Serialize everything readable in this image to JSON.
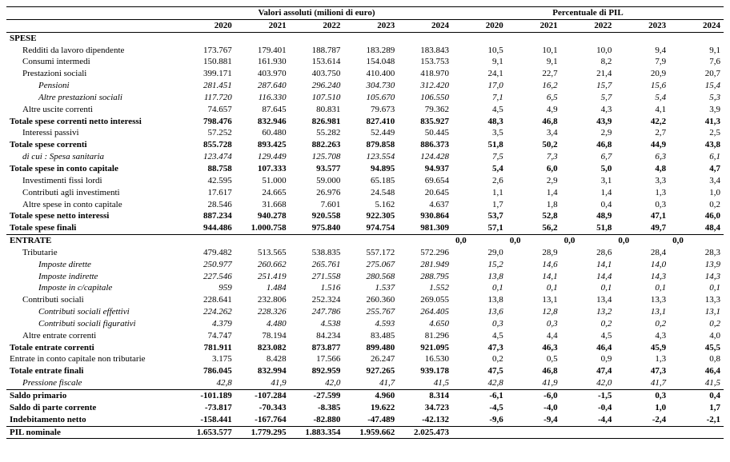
{
  "header": {
    "group_abs": "Valori assoluti (milioni di euro)",
    "group_pct": "Percentuale di PIL",
    "years": [
      "2020",
      "2021",
      "2022",
      "2023",
      "2024"
    ]
  },
  "rows": [
    {
      "kind": "section",
      "label": "SPESE"
    },
    {
      "label": "Redditi da lavoro dipendente",
      "indent": 1,
      "abs": [
        "173.767",
        "179.401",
        "188.787",
        "183.289",
        "183.843"
      ],
      "pct": [
        "10,5",
        "10,1",
        "10,0",
        "9,4",
        "9,1"
      ]
    },
    {
      "label": "Consumi intermedi",
      "indent": 1,
      "abs": [
        "150.881",
        "161.930",
        "153.614",
        "154.048",
        "153.753"
      ],
      "pct": [
        "9,1",
        "9,1",
        "8,2",
        "7,9",
        "7,6"
      ]
    },
    {
      "label": "Prestazioni sociali",
      "indent": 1,
      "abs": [
        "399.171",
        "403.970",
        "403.750",
        "410.400",
        "418.970"
      ],
      "pct": [
        "24,1",
        "22,7",
        "21,4",
        "20,9",
        "20,7"
      ]
    },
    {
      "label": "Pensioni",
      "indent": 2,
      "italic": true,
      "abs": [
        "281.451",
        "287.640",
        "296.240",
        "304.730",
        "312.420"
      ],
      "pct": [
        "17,0",
        "16,2",
        "15,7",
        "15,6",
        "15,4"
      ]
    },
    {
      "label": "Altre prestazioni sociali",
      "indent": 2,
      "italic": true,
      "abs": [
        "117.720",
        "116.330",
        "107.510",
        "105.670",
        "106.550"
      ],
      "pct": [
        "7,1",
        "6,5",
        "5,7",
        "5,4",
        "5,3"
      ]
    },
    {
      "label": "Altre uscite correnti",
      "indent": 1,
      "abs": [
        "74.657",
        "87.645",
        "80.831",
        "79.673",
        "79.362"
      ],
      "pct": [
        "4,5",
        "4,9",
        "4,3",
        "4,1",
        "3,9"
      ]
    },
    {
      "label": "Totale spese correnti netto interessi",
      "bold": true,
      "abs": [
        "798.476",
        "832.946",
        "826.981",
        "827.410",
        "835.927"
      ],
      "pct": [
        "48,3",
        "46,8",
        "43,9",
        "42,2",
        "41,3"
      ]
    },
    {
      "label": "Interessi passivi",
      "indent": 1,
      "abs": [
        "57.252",
        "60.480",
        "55.282",
        "52.449",
        "50.445"
      ],
      "pct": [
        "3,5",
        "3,4",
        "2,9",
        "2,7",
        "2,5"
      ]
    },
    {
      "label": "Totale spese correnti",
      "bold": true,
      "abs": [
        "855.728",
        "893.425",
        "882.263",
        "879.858",
        "886.373"
      ],
      "pct": [
        "51,8",
        "50,2",
        "46,8",
        "44,9",
        "43,8"
      ]
    },
    {
      "label": "di cui : Spesa sanitaria",
      "indent": 1,
      "italic": true,
      "abs": [
        "123.474",
        "129.449",
        "125.708",
        "123.554",
        "124.428"
      ],
      "pct": [
        "7,5",
        "7,3",
        "6,7",
        "6,3",
        "6,1"
      ]
    },
    {
      "label": "Totale spese in conto capitale",
      "bold": true,
      "abs": [
        "88.758",
        "107.333",
        "93.577",
        "94.895",
        "94.937"
      ],
      "pct": [
        "5,4",
        "6,0",
        "5,0",
        "4,8",
        "4,7"
      ]
    },
    {
      "label": "Investimenti fissi lordi",
      "indent": 1,
      "abs": [
        "42.595",
        "51.000",
        "59.000",
        "65.185",
        "69.654"
      ],
      "pct": [
        "2,6",
        "2,9",
        "3,1",
        "3,3",
        "3,4"
      ]
    },
    {
      "label": "Contributi agli investimenti",
      "indent": 1,
      "abs": [
        "17.617",
        "24.665",
        "26.976",
        "24.548",
        "20.645"
      ],
      "pct": [
        "1,1",
        "1,4",
        "1,4",
        "1,3",
        "1,0"
      ]
    },
    {
      "label": "Altre spese in conto capitale",
      "indent": 1,
      "abs": [
        "28.546",
        "31.668",
        "7.601",
        "5.162",
        "4.637"
      ],
      "pct": [
        "1,7",
        "1,8",
        "0,4",
        "0,3",
        "0,2"
      ]
    },
    {
      "label": "Totale spese netto interessi",
      "bold": true,
      "abs": [
        "887.234",
        "940.278",
        "920.558",
        "922.305",
        "930.864"
      ],
      "pct": [
        "53,7",
        "52,8",
        "48,9",
        "47,1",
        "46,0"
      ]
    },
    {
      "label": "Totale spese finali",
      "bold": true,
      "bottomBorder": true,
      "abs": [
        "944.486",
        "1.000.758",
        "975.840",
        "974.754",
        "981.309"
      ],
      "pct": [
        "57,1",
        "56,2",
        "51,8",
        "49,7",
        "48,4"
      ]
    },
    {
      "kind": "section",
      "label": "ENTRATE",
      "fillPct": [
        "0,0",
        "0,0",
        "0,0",
        "0,0",
        "0,0"
      ]
    },
    {
      "label": "Tributarie",
      "indent": 1,
      "abs": [
        "479.482",
        "513.565",
        "538.835",
        "557.172",
        "572.296"
      ],
      "pct": [
        "29,0",
        "28,9",
        "28,6",
        "28,4",
        "28,3"
      ]
    },
    {
      "label": "Imposte dirette",
      "indent": 2,
      "italic": true,
      "abs": [
        "250.977",
        "260.662",
        "265.761",
        "275.067",
        "281.949"
      ],
      "pct": [
        "15,2",
        "14,6",
        "14,1",
        "14,0",
        "13,9"
      ]
    },
    {
      "label": "Imposte indirette",
      "indent": 2,
      "italic": true,
      "abs": [
        "227.546",
        "251.419",
        "271.558",
        "280.568",
        "288.795"
      ],
      "pct": [
        "13,8",
        "14,1",
        "14,4",
        "14,3",
        "14,3"
      ]
    },
    {
      "label": "Imposte in c/capitale",
      "indent": 2,
      "italic": true,
      "abs": [
        "959",
        "1.484",
        "1.516",
        "1.537",
        "1.552"
      ],
      "pct": [
        "0,1",
        "0,1",
        "0,1",
        "0,1",
        "0,1"
      ]
    },
    {
      "label": "Contributi sociali",
      "indent": 1,
      "abs": [
        "228.641",
        "232.806",
        "252.324",
        "260.360",
        "269.055"
      ],
      "pct": [
        "13,8",
        "13,1",
        "13,4",
        "13,3",
        "13,3"
      ]
    },
    {
      "label": "Contributi sociali effettivi",
      "indent": 2,
      "italic": true,
      "abs": [
        "224.262",
        "228.326",
        "247.786",
        "255.767",
        "264.405"
      ],
      "pct": [
        "13,6",
        "12,8",
        "13,2",
        "13,1",
        "13,1"
      ]
    },
    {
      "label": "Contributi sociali figurativi",
      "indent": 2,
      "italic": true,
      "abs": [
        "4.379",
        "4.480",
        "4.538",
        "4.593",
        "4.650"
      ],
      "pct": [
        "0,3",
        "0,3",
        "0,2",
        "0,2",
        "0,2"
      ]
    },
    {
      "label": "Altre entrate correnti",
      "indent": 1,
      "abs": [
        "74.747",
        "78.194",
        "84.234",
        "83.485",
        "81.296"
      ],
      "pct": [
        "4,5",
        "4,4",
        "4,5",
        "4,3",
        "4,0"
      ]
    },
    {
      "label": "Totale entrate correnti",
      "bold": true,
      "abs": [
        "781.911",
        "823.082",
        "873.877",
        "899.480",
        "921.095"
      ],
      "pct": [
        "47,3",
        "46,3",
        "46,4",
        "45,9",
        "45,5"
      ]
    },
    {
      "label": "Entrate in conto capitale non tributarie",
      "indent": 0,
      "abs": [
        "3.175",
        "8.428",
        "17.566",
        "26.247",
        "16.530"
      ],
      "pct": [
        "0,2",
        "0,5",
        "0,9",
        "1,3",
        "0,8"
      ]
    },
    {
      "label": "Totale entrate finali",
      "bold": true,
      "abs": [
        "786.045",
        "832.994",
        "892.959",
        "927.265",
        "939.178"
      ],
      "pct": [
        "47,5",
        "46,8",
        "47,4",
        "47,3",
        "46,4"
      ]
    },
    {
      "label": "Pressione fiscale",
      "indent": 1,
      "italic": true,
      "bottomBorder": true,
      "abs": [
        "42,8",
        "41,9",
        "42,0",
        "41,7",
        "41,5"
      ],
      "pct": [
        "42,8",
        "41,9",
        "42,0",
        "41,7",
        "41,5"
      ]
    },
    {
      "label": "Saldo primario",
      "bold": true,
      "abs": [
        "-101.189",
        "-107.284",
        "-27.599",
        "4.960",
        "8.314"
      ],
      "pct": [
        "-6,1",
        "-6,0",
        "-1,5",
        "0,3",
        "0,4"
      ]
    },
    {
      "label": "Saldo di parte corrente",
      "bold": true,
      "abs": [
        "-73.817",
        "-70.343",
        "-8.385",
        "19.622",
        "34.723"
      ],
      "pct": [
        "-4,5",
        "-4,0",
        "-0,4",
        "1,0",
        "1,7"
      ]
    },
    {
      "label": "Indebitamento netto",
      "bold": true,
      "bottomBorder": true,
      "abs": [
        "-158.441",
        "-167.764",
        "-82.880",
        "-47.489",
        "-42.132"
      ],
      "pct": [
        "-9,6",
        "-9,4",
        "-4,4",
        "-2,4",
        "-2,1"
      ]
    },
    {
      "label": "PIL nominale",
      "bold": true,
      "bottomBorder": true,
      "abs": [
        "1.653.577",
        "1.779.295",
        "1.883.354",
        "1.959.662",
        "2.025.473"
      ],
      "pct": [
        "",
        "",
        "",
        "",
        ""
      ]
    }
  ],
  "style": {
    "font_family": "Times New Roman",
    "base_font_size": 11,
    "text_color": "#000000",
    "bg_color": "#ffffff",
    "border_color": "#000000"
  }
}
